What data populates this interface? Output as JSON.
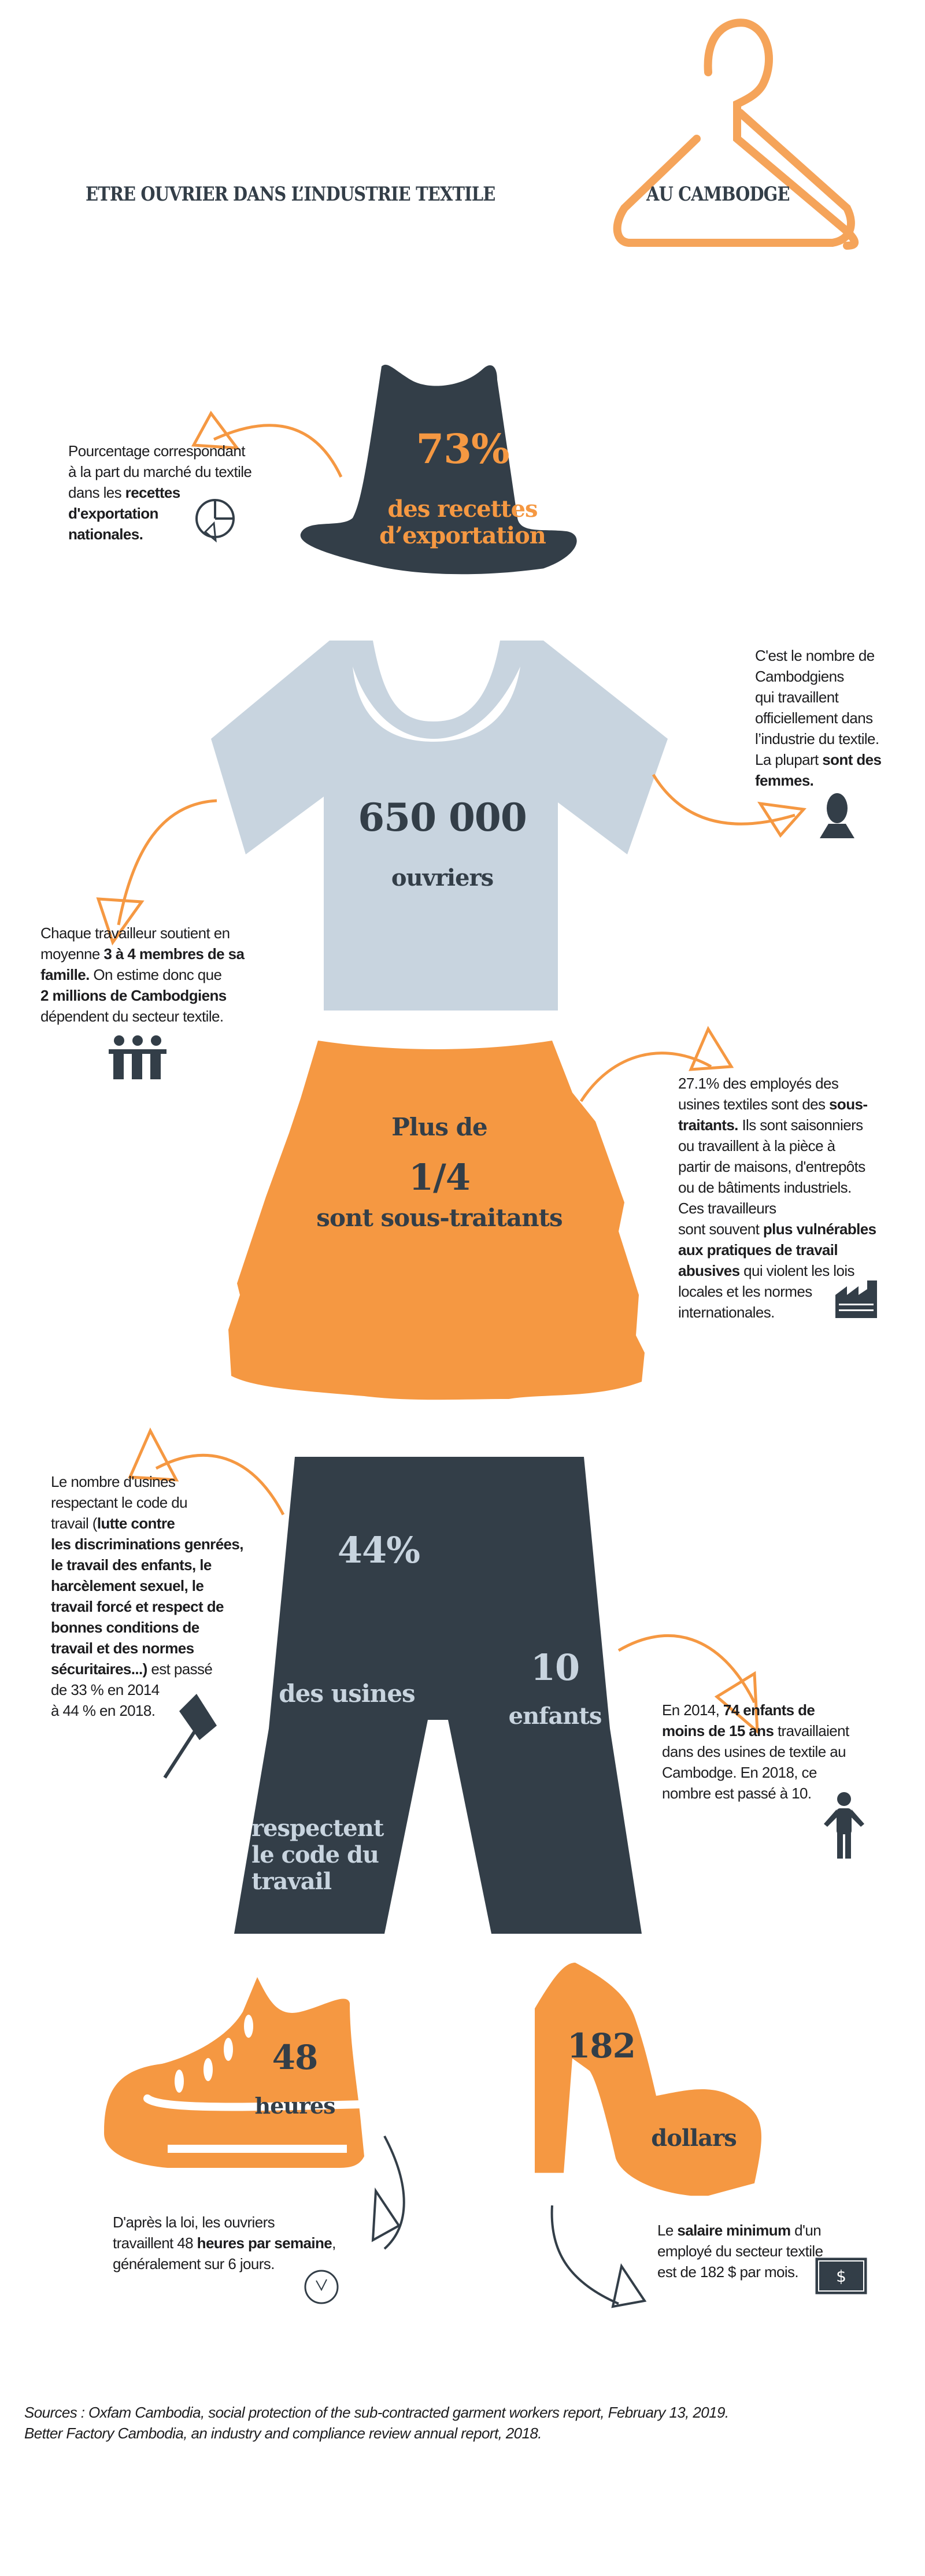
{
  "header": {
    "title_left": "ETRE OUVRIER DANS L’INDUSTRIE TEXTILE",
    "title_right": "AU CAMBODGE"
  },
  "colors": {
    "orange": "#f59842",
    "dark": "#333e48",
    "light_blue": "#c8d4df"
  },
  "hat": {
    "value": "73%",
    "label": "des recettes d’exportation",
    "note": [
      "Pourcentage correspondant",
      "à la part du marché du textile",
      "dans les ",
      "recettes",
      "d'exportation",
      "nationales."
    ],
    "icon": "pie-chart-icon"
  },
  "shirt": {
    "value": "650 000",
    "label": "ouvriers",
    "note_right": [
      "C'est le nombre de",
      "Cambodgiens",
      "qui travaillent",
      "officiellement dans",
      "l’industrie du textile.",
      "La plupart ",
      "sont des",
      "femmes."
    ],
    "note_left": [
      "Chaque travailleur soutient en",
      "moyenne ",
      "3 à 4 membres de sa",
      "famille.",
      "On estime donc que",
      "2 millions de Cambodgiens",
      "dépendent du secteur textile."
    ]
  },
  "skirt": {
    "prefix": "Plus de",
    "value": "1/4",
    "label": "sont sous-traitants",
    "note": [
      "27.1%  des employés des",
      "usines textiles sont des ",
      "sous-",
      "traitants.",
      "Ils sont saisonniers",
      "ou travaillent à la pièce à",
      "partir de maisons, d'entrepôts",
      "ou de bâtiments industriels.",
      "Ces travailleurs",
      "sont souvent ",
      "plus vulnérables",
      "aux pratiques de travail",
      "abusives",
      "qui violent les lois",
      "locales et les normes",
      "internationales."
    ]
  },
  "pants": {
    "value_left": "44%",
    "label_left_1": "des usines",
    "label_left_2": "respectent le code du travail",
    "value_right": "10",
    "label_right": "enfants",
    "note_left": [
      "Le nombre d'usines",
      "respectant le code du",
      "travail (",
      "lutte contre",
      "les discriminations genrées,",
      "le travail des enfants, le",
      "harcèlement sexuel, le",
      "travail forcé et respect de",
      "bonnes conditions de",
      "travail et des normes",
      "sécuritaires...)",
      "est passé",
      "de 33 % en 2014",
      "à 44 % en 2018."
    ],
    "note_right": [
      "En 2014, ",
      "74 enfants de",
      "moins de 15 ans",
      "travaillaient",
      "dans des usines de textile au",
      "Cambodge. En 2018, ce",
      "nombre est passé à 10."
    ]
  },
  "sneaker": {
    "value": "48",
    "label": "heures",
    "note": [
      "D'après la loi, les ouvriers",
      "travaillent 48 ",
      "heures par semaine",
      ",",
      "généralement sur 6 jours."
    ]
  },
  "heel": {
    "value": "182",
    "label": "dollars",
    "note": [
      "Le ",
      "salaire minimum",
      "d'un",
      "employé du secteur textile",
      "est de 182 $ par mois."
    ]
  },
  "sources": [
    "Sources : Oxfam Cambodia, social protection of the sub-contracted garment workers report, February 13, 2019.",
    "Better Factory Cambodia, an industry and compliance review annual report, 2018."
  ]
}
